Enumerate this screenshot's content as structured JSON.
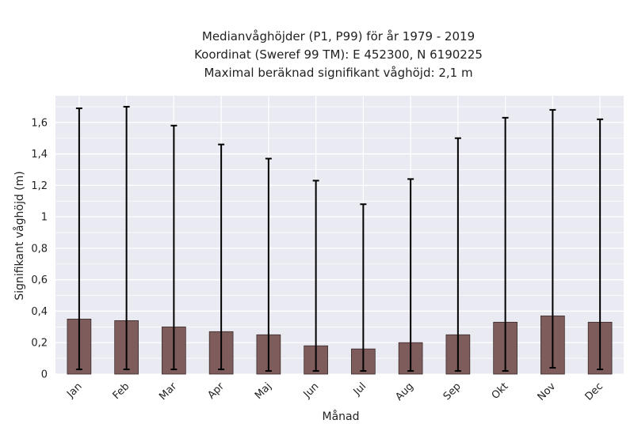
{
  "chart_data": {
    "type": "bar",
    "title_lines": [
      "Medianvåghöjder (P1, P99) för år 1979 - 2019",
      "Koordinat (Sweref 99 TM): E 452300, N 6190225",
      "Maximal beräknad signifikant våghöjd: 2,1 m"
    ],
    "xlabel": "Månad",
    "ylabel": "Signifikant våghöjd (m)",
    "categories": [
      "Jan",
      "Feb",
      "Mar",
      "Apr",
      "Maj",
      "Jun",
      "Jul",
      "Aug",
      "Sep",
      "Okt",
      "Nov",
      "Dec"
    ],
    "values": [
      0.35,
      0.34,
      0.3,
      0.27,
      0.25,
      0.18,
      0.16,
      0.2,
      0.25,
      0.33,
      0.37,
      0.33
    ],
    "error_low": [
      0.03,
      0.03,
      0.03,
      0.03,
      0.02,
      0.02,
      0.02,
      0.02,
      0.02,
      0.02,
      0.04,
      0.03
    ],
    "error_high": [
      1.69,
      1.7,
      1.58,
      1.46,
      1.37,
      1.23,
      1.08,
      1.24,
      1.5,
      1.63,
      1.68,
      1.62
    ],
    "ylim": [
      0,
      1.77
    ],
    "yticks": [
      0,
      0.2,
      0.4,
      0.6,
      0.8,
      1.0,
      1.2,
      1.4,
      1.6
    ],
    "ytick_labels": [
      "0",
      "0,2",
      "0,4",
      "0,6",
      "0,8",
      "1",
      "1,2",
      "1,4",
      "1,6"
    ],
    "grid": true,
    "legend": "none",
    "colors": {
      "bar_fill": "#7f5c5c",
      "bar_edge": "#3a2a2a",
      "error_bar": "#000000",
      "plot_background": "#eaeaf2",
      "grid": "#ffffff",
      "text": "#222222"
    }
  }
}
